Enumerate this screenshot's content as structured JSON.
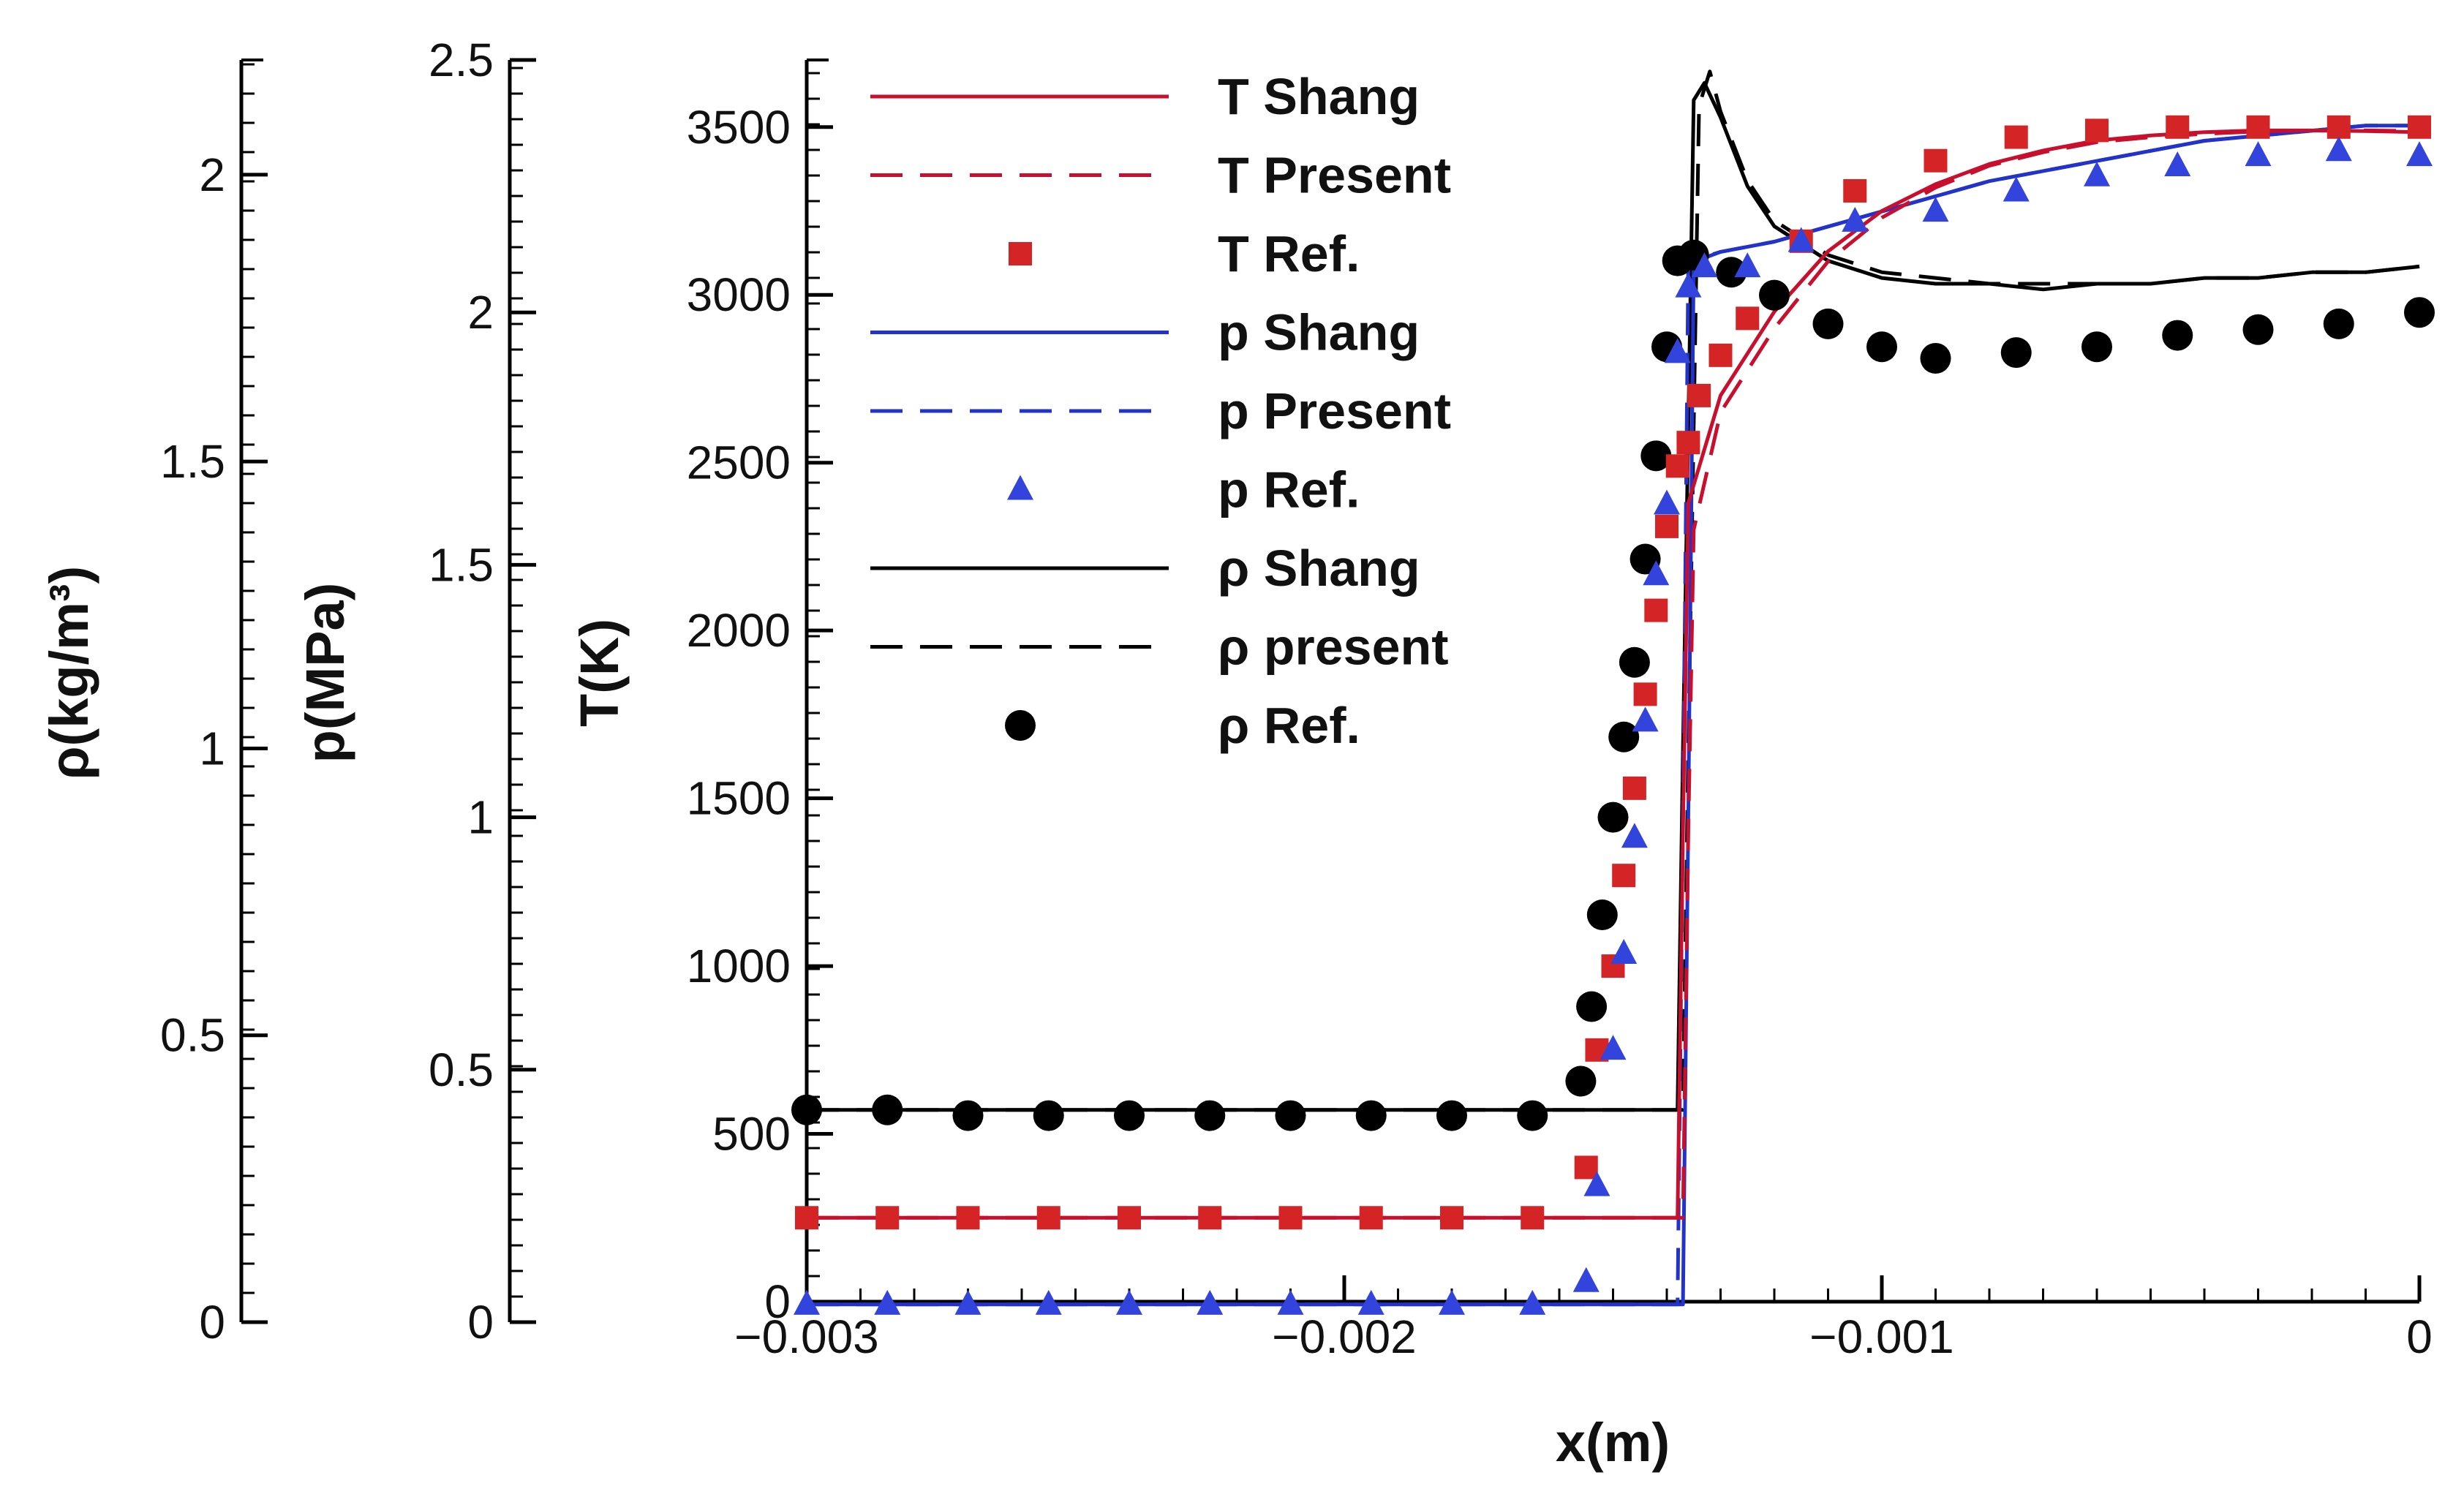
{
  "chart_data": {
    "type": "line",
    "xlabel": "x(m)",
    "xlim": [
      -0.003,
      0
    ],
    "x_ticks": [
      -0.003,
      -0.002,
      -0.001,
      0
    ],
    "x_tick_labels": [
      "−0.003",
      "−0.002",
      "−0.001",
      "0"
    ],
    "axes": {
      "T": {
        "label": "T(K)",
        "ylim": [
          0,
          3700
        ],
        "ticks": [
          0,
          500,
          1000,
          1500,
          2000,
          2500,
          3000,
          3500
        ],
        "tick_labels": [
          "0",
          "500",
          "1000",
          "1500",
          "2000",
          "2500",
          "3000",
          "3500"
        ]
      },
      "p": {
        "label": "p(MPa)",
        "ylim": [
          0,
          2.5
        ],
        "ticks": [
          0,
          0.5,
          1,
          1.5,
          2,
          2.5
        ],
        "tick_labels": [
          "0",
          "0.5",
          "1",
          "1.5",
          "2",
          "2.5"
        ]
      },
      "rho": {
        "label": "ρ(kg/m³)",
        "ylim": [
          0,
          2.2
        ],
        "ticks": [
          0,
          0.5,
          1,
          1.5,
          2
        ],
        "tick_labels": [
          "0",
          "0.5",
          "1",
          "1.5",
          "2"
        ]
      }
    },
    "series": [
      {
        "name": "T Shang",
        "axis": "T",
        "style": "solid",
        "color": "#c8102e",
        "x": [
          -0.003,
          -0.00138,
          -0.00137,
          -0.00136,
          -0.0013,
          -0.0012,
          -0.0011,
          -0.001,
          -0.0009,
          -0.0008,
          -0.0007,
          -0.0006,
          -0.0005,
          -0.0004,
          -0.0003,
          -0.0002,
          -0.0001,
          0
        ],
        "y": [
          250,
          250,
          1400,
          2380,
          2700,
          2950,
          3130,
          3250,
          3330,
          3390,
          3430,
          3460,
          3475,
          3485,
          3490,
          3490,
          3488,
          3485
        ]
      },
      {
        "name": "T Present",
        "axis": "T",
        "style": "dashed",
        "color": "#c8102e",
        "x": [
          -0.003,
          -0.00137,
          -0.00136,
          -0.00135,
          -0.0013,
          -0.0012,
          -0.0011,
          -0.001,
          -0.0009,
          -0.0008,
          -0.0007,
          -0.0006,
          -0.0005,
          -0.0004,
          -0.0003,
          -0.0002,
          -0.0001,
          0
        ],
        "y": [
          250,
          250,
          1400,
          2300,
          2650,
          2900,
          3100,
          3230,
          3320,
          3385,
          3425,
          3455,
          3470,
          3480,
          3487,
          3490,
          3490,
          3488
        ]
      },
      {
        "name": "T Ref.",
        "axis": "T",
        "style": "marker",
        "marker": "square",
        "color": "#d42426",
        "x": [
          -0.003,
          -0.00285,
          -0.0027,
          -0.00255,
          -0.0024,
          -0.00225,
          -0.0021,
          -0.00195,
          -0.0018,
          -0.00165,
          -0.00155,
          -0.00153,
          -0.0015,
          -0.00148,
          -0.00146,
          -0.00144,
          -0.00142,
          -0.0014,
          -0.00138,
          -0.00136,
          -0.00134,
          -0.0013,
          -0.00125,
          -0.00115,
          -0.00105,
          -0.0009,
          -0.00075,
          -0.0006,
          -0.00045,
          -0.0003,
          -0.00015,
          0
        ],
        "y": [
          250,
          250,
          250,
          250,
          250,
          250,
          250,
          250,
          250,
          250,
          400,
          750,
          1000,
          1270,
          1530,
          1810,
          2060,
          2310,
          2490,
          2560,
          2700,
          2820,
          2930,
          3160,
          3310,
          3400,
          3470,
          3490,
          3500,
          3500,
          3500,
          3500
        ]
      },
      {
        "name": "p Shang",
        "axis": "p",
        "style": "solid",
        "color": "#2233cc",
        "x": [
          -0.003,
          -0.00137,
          -0.00136,
          -0.00135,
          -0.0013,
          -0.0012,
          -0.0011,
          -0.001,
          -0.0009,
          -0.0008,
          -0.0007,
          -0.0006,
          -0.0005,
          -0.0004,
          -0.0003,
          -0.0002,
          -0.0001,
          0
        ],
        "y": [
          0.035,
          0.035,
          1.0,
          2.1,
          2.12,
          2.14,
          2.17,
          2.2,
          2.23,
          2.26,
          2.28,
          2.3,
          2.32,
          2.34,
          2.35,
          2.36,
          2.37,
          2.37
        ]
      },
      {
        "name": "p Present",
        "axis": "p",
        "style": "dashed",
        "color": "#2233cc",
        "x": [
          -0.003,
          -0.00138,
          -0.00137,
          -0.00136,
          -0.0013,
          -0.0012,
          -0.0011,
          -0.001,
          -0.0009,
          -0.0008,
          -0.0007,
          -0.0006,
          -0.0005,
          -0.0004,
          -0.0003,
          -0.0002,
          -0.0001,
          0
        ],
        "y": [
          0.035,
          0.035,
          1.0,
          2.1,
          2.12,
          2.14,
          2.17,
          2.2,
          2.23,
          2.26,
          2.28,
          2.3,
          2.32,
          2.34,
          2.35,
          2.36,
          2.37,
          2.37
        ]
      },
      {
        "name": "p Ref.",
        "axis": "p",
        "style": "marker",
        "marker": "triangle",
        "color": "#3344dd",
        "x": [
          -0.003,
          -0.00285,
          -0.0027,
          -0.00255,
          -0.0024,
          -0.00225,
          -0.0021,
          -0.00195,
          -0.0018,
          -0.00165,
          -0.00155,
          -0.00153,
          -0.0015,
          -0.00148,
          -0.00146,
          -0.00144,
          -0.00142,
          -0.0014,
          -0.00138,
          -0.00136,
          -0.00133,
          -0.00125,
          -0.00115,
          -0.00105,
          -0.0009,
          -0.00075,
          -0.0006,
          -0.00045,
          -0.0003,
          -0.00015,
          0
        ],
        "y": [
          0.035,
          0.035,
          0.035,
          0.035,
          0.035,
          0.035,
          0.035,
          0.035,
          0.035,
          0.035,
          0.08,
          0.27,
          0.54,
          0.73,
          0.96,
          1.19,
          1.48,
          1.62,
          1.92,
          2.05,
          2.09,
          2.09,
          2.14,
          2.18,
          2.2,
          2.24,
          2.27,
          2.29,
          2.31,
          2.32,
          2.31
        ]
      },
      {
        "name": "ρ Shang",
        "axis": "rho",
        "style": "solid",
        "color": "#000000",
        "x": [
          -0.003,
          -0.00138,
          -0.00137,
          -0.00135,
          -0.00133,
          -0.0013,
          -0.00125,
          -0.0012,
          -0.0011,
          -0.001,
          -0.0009,
          -0.0008,
          -0.0007,
          -0.0006,
          -0.0005,
          -0.0004,
          -0.0003,
          -0.0002,
          -0.0001,
          0
        ],
        "y": [
          0.37,
          0.37,
          1.0,
          2.13,
          2.16,
          2.1,
          1.98,
          1.91,
          1.85,
          1.82,
          1.81,
          1.81,
          1.8,
          1.81,
          1.81,
          1.82,
          1.82,
          1.83,
          1.83,
          1.84
        ]
      },
      {
        "name": "ρ present",
        "axis": "rho",
        "style": "dashed",
        "color": "#000000",
        "x": [
          -0.003,
          -0.00137,
          -0.00136,
          -0.00134,
          -0.00132,
          -0.0013,
          -0.00125,
          -0.0012,
          -0.0011,
          -0.001,
          -0.0009,
          -0.0008,
          -0.0007,
          -0.0006,
          -0.0005,
          -0.0004,
          -0.0003,
          -0.0002,
          -0.0001,
          0
        ],
        "y": [
          0.37,
          0.37,
          1.0,
          2.12,
          2.18,
          2.11,
          1.99,
          1.92,
          1.86,
          1.83,
          1.82,
          1.81,
          1.81,
          1.81,
          1.81,
          1.82,
          1.82,
          1.83,
          1.83,
          1.84
        ]
      },
      {
        "name": "ρ Ref.",
        "axis": "rho",
        "style": "marker",
        "marker": "circle",
        "color": "#000000",
        "x": [
          -0.003,
          -0.00285,
          -0.0027,
          -0.00255,
          -0.0024,
          -0.00225,
          -0.0021,
          -0.00195,
          -0.0018,
          -0.00165,
          -0.00156,
          -0.00154,
          -0.00152,
          -0.0015,
          -0.00148,
          -0.00146,
          -0.00144,
          -0.00142,
          -0.0014,
          -0.00138,
          -0.00135,
          -0.00128,
          -0.0012,
          -0.0011,
          -0.001,
          -0.0009,
          -0.00075,
          -0.0006,
          -0.00045,
          -0.0003,
          -0.00015,
          0
        ],
        "y": [
          0.37,
          0.37,
          0.36,
          0.36,
          0.36,
          0.36,
          0.36,
          0.36,
          0.36,
          0.36,
          0.42,
          0.55,
          0.71,
          0.88,
          1.02,
          1.15,
          1.33,
          1.51,
          1.7,
          1.85,
          1.86,
          1.83,
          1.79,
          1.74,
          1.7,
          1.68,
          1.69,
          1.7,
          1.72,
          1.73,
          1.74,
          1.76
        ]
      }
    ],
    "legend": {
      "position": "top-left",
      "entries": [
        "T Shang",
        "T Present",
        "T Ref.",
        "p Shang",
        "p Present",
        "p Ref.",
        "ρ Shang",
        "ρ present",
        "ρ Ref."
      ]
    }
  }
}
